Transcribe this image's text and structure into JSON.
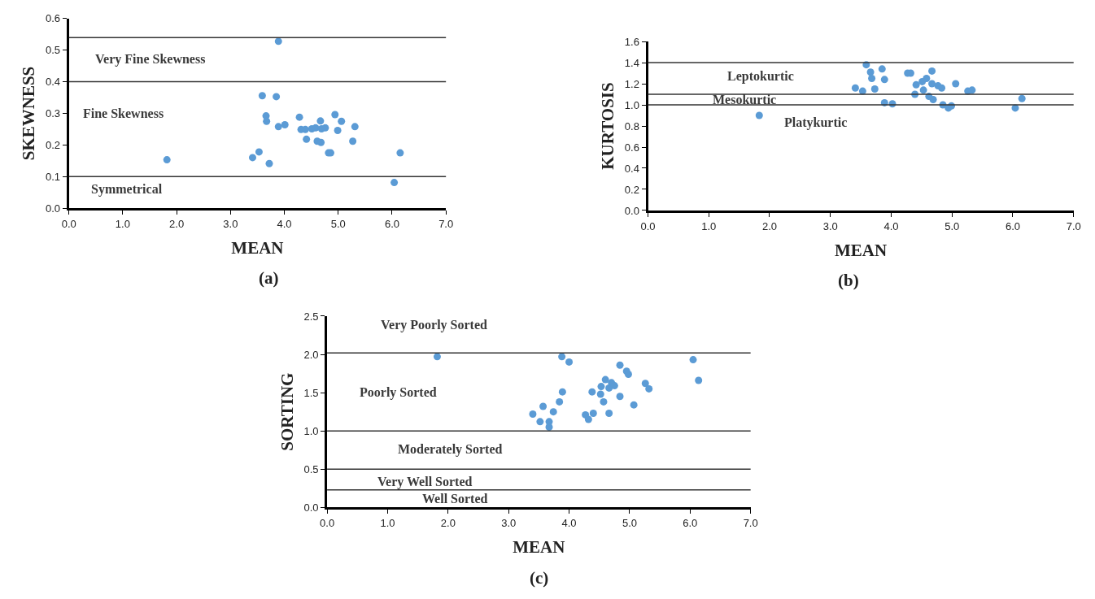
{
  "chart_data": [
    {
      "type": "scatter",
      "xlabel": "MEAN",
      "ylabel": "SKEWNESS",
      "color": "#5b9bd5",
      "marker": "circle",
      "x": [
        1.82,
        3.89,
        3.59,
        3.85,
        3.66,
        3.67,
        3.89,
        4.01,
        4.28,
        4.31,
        4.39,
        4.41,
        4.51,
        4.58,
        4.67,
        4.69,
        4.76,
        4.61,
        4.68,
        4.82,
        4.86,
        4.94,
        4.99,
        5.06,
        5.31,
        5.27,
        3.53,
        3.41,
        3.72,
        6.04,
        6.15
      ],
      "values": [
        0.153,
        0.528,
        0.356,
        0.353,
        0.292,
        0.275,
        0.258,
        0.264,
        0.288,
        0.249,
        0.249,
        0.218,
        0.251,
        0.254,
        0.276,
        0.251,
        0.254,
        0.212,
        0.208,
        0.175,
        0.175,
        0.296,
        0.246,
        0.275,
        0.258,
        0.212,
        0.178,
        0.16,
        0.141,
        0.081,
        0.175
      ],
      "xlim": [
        0,
        7
      ],
      "ylim": [
        0,
        0.6
      ],
      "xticks": [
        {
          "value": 0,
          "label": "0.0"
        },
        {
          "value": 1,
          "label": "1.0"
        },
        {
          "value": 2,
          "label": "2.0"
        },
        {
          "value": 3,
          "label": "3.0"
        },
        {
          "value": 4,
          "label": "4.0"
        },
        {
          "value": 5,
          "label": "5.0"
        },
        {
          "value": 6,
          "label": "6.0"
        },
        {
          "value": 7,
          "label": "7.0"
        }
      ],
      "yticks": [
        {
          "value": 0,
          "label": "0.0"
        },
        0.1,
        0.2,
        0.3,
        0.4,
        0.5,
        0.6
      ],
      "ref_lines": [
        {
          "axis": "y",
          "value": 0.1,
          "color": "#333333"
        },
        {
          "axis": "y",
          "value": 0.4,
          "color": "#333333"
        },
        {
          "axis": "y",
          "value": 0.54,
          "color": "#333333"
        }
      ],
      "annotations": [
        "Very Fine Skewness",
        "Fine Skewness",
        "Symmetrical",
        "(a)"
      ]
    },
    {
      "type": "scatter",
      "xlabel": "MEAN",
      "ylabel": "KURTOSIS",
      "color": "#5b9bd5",
      "marker": "circle",
      "x": [
        1.83,
        3.41,
        3.53,
        3.59,
        3.66,
        3.68,
        3.73,
        3.85,
        3.89,
        3.89,
        4.02,
        4.27,
        4.32,
        4.41,
        4.39,
        4.51,
        4.58,
        4.53,
        4.67,
        4.67,
        4.77,
        4.83,
        4.62,
        4.69,
        4.85,
        4.94,
        4.99,
        5.06,
        5.26,
        5.33,
        6.04,
        6.15
      ],
      "values": [
        0.9,
        1.16,
        1.13,
        1.38,
        1.31,
        1.25,
        1.15,
        1.34,
        1.24,
        1.02,
        1.01,
        1.3,
        1.3,
        1.19,
        1.1,
        1.22,
        1.25,
        1.14,
        1.32,
        1.2,
        1.18,
        1.16,
        1.08,
        1.05,
        1.0,
        0.97,
        0.99,
        1.2,
        1.13,
        1.14,
        0.97,
        1.06
      ],
      "xlim": [
        0,
        7
      ],
      "ylim": [
        0,
        1.6
      ],
      "xticks": [
        {
          "value": 0,
          "label": "0.0"
        },
        {
          "value": 1,
          "label": "1.0"
        },
        {
          "value": 2,
          "label": "2.0"
        },
        {
          "value": 3,
          "label": "3.0"
        },
        {
          "value": 4,
          "label": "4.0"
        },
        {
          "value": 5,
          "label": "5.0"
        },
        {
          "value": 6,
          "label": "6.0"
        },
        {
          "value": 7,
          "label": "7.0"
        }
      ],
      "yticks": [
        {
          "value": 0,
          "label": "0.0"
        },
        0.2,
        0.4,
        0.6,
        0.8,
        {
          "value": 1,
          "label": "1.0"
        },
        1.2,
        1.4,
        1.6
      ],
      "ref_lines": [
        {
          "axis": "y",
          "value": 1.0,
          "color": "#333333"
        },
        {
          "axis": "y",
          "value": 1.1,
          "color": "#333333"
        },
        {
          "axis": "y",
          "value": 1.4,
          "color": "#333333"
        }
      ],
      "annotations": [
        "Leptokurtic",
        "Mesokurtic",
        "Platykurtic",
        "(b)"
      ]
    },
    {
      "type": "scatter",
      "xlabel": "MEAN",
      "ylabel": "SORTING",
      "color": "#5b9bd5",
      "marker": "circle",
      "x": [
        1.82,
        3.88,
        4.0,
        3.4,
        3.57,
        3.52,
        3.67,
        3.67,
        3.74,
        3.84,
        3.89,
        4.27,
        4.32,
        4.4,
        4.38,
        4.52,
        4.53,
        4.57,
        4.6,
        4.66,
        4.7,
        4.75,
        4.66,
        4.84,
        4.84,
        4.95,
        4.98,
        5.07,
        5.26,
        5.32,
        6.05,
        6.14
      ],
      "values": [
        1.97,
        1.97,
        1.9,
        1.22,
        1.32,
        1.12,
        1.12,
        1.05,
        1.25,
        1.38,
        1.51,
        1.21,
        1.15,
        1.23,
        1.51,
        1.48,
        1.58,
        1.38,
        1.67,
        1.56,
        1.63,
        1.59,
        1.23,
        1.86,
        1.45,
        1.78,
        1.74,
        1.34,
        1.62,
        1.55,
        1.93,
        1.66
      ],
      "xlim": [
        0,
        7
      ],
      "ylim": [
        0,
        2.5
      ],
      "xticks": [
        {
          "value": 0,
          "label": "0.0"
        },
        {
          "value": 1,
          "label": "1.0"
        },
        {
          "value": 2,
          "label": "2.0"
        },
        {
          "value": 3,
          "label": "3.0"
        },
        {
          "value": 4,
          "label": "4.0"
        },
        {
          "value": 5,
          "label": "5.0"
        },
        {
          "value": 6,
          "label": "6.0"
        },
        {
          "value": 7,
          "label": "7.0"
        }
      ],
      "yticks": [
        {
          "value": 0,
          "label": "0.0"
        },
        0.5,
        {
          "value": 1,
          "label": "1.0"
        },
        1.5,
        {
          "value": 2,
          "label": "2.0"
        },
        2.5
      ],
      "ref_lines": [
        {
          "axis": "y",
          "value": 0.23,
          "color": "#333333"
        },
        {
          "axis": "y",
          "value": 0.5,
          "color": "#333333"
        },
        {
          "axis": "y",
          "value": 1.0,
          "color": "#333333"
        },
        {
          "axis": "y",
          "value": 2.02,
          "color": "#333333"
        }
      ],
      "annotations": [
        "Very Poorly Sorted",
        "Poorly Sorted",
        "Moderately Sorted",
        "Very Well Sorted",
        "Well Sorted",
        "(c)"
      ]
    }
  ]
}
